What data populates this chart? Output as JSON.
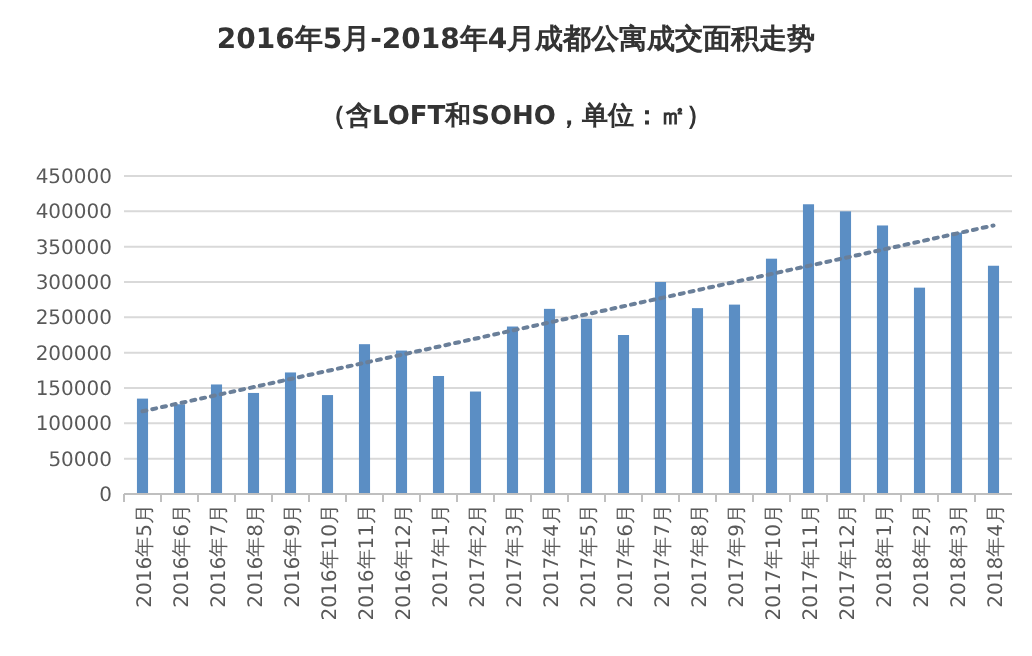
{
  "chart_data": {
    "type": "bar",
    "title": "2016年5月-2018年4月成都公寓成交面积走势",
    "subtitle": "（含LOFT和SOHO，单位：㎡）",
    "categories": [
      "2016年5月",
      "2016年6月",
      "2016年7月",
      "2016年8月",
      "2016年9月",
      "2016年10月",
      "2016年11月",
      "2016年12月",
      "2017年1月",
      "2017年2月",
      "2017年3月",
      "2017年4月",
      "2017年5月",
      "2017年6月",
      "2017年7月",
      "2017年8月",
      "2017年9月",
      "2017年10月",
      "2017年11月",
      "2017年12月",
      "2018年1月",
      "2018年2月",
      "2018年3月",
      "2018年4月"
    ],
    "series": [
      {
        "color": "#5b8ec4",
        "values": [
          135000,
          127000,
          155000,
          143000,
          172000,
          140000,
          212000,
          203000,
          167000,
          145000,
          237000,
          262000,
          248000,
          225000,
          300000,
          263000,
          268000,
          333000,
          410000,
          400000,
          380000,
          292000,
          370000,
          323000
        ]
      },
      {
        "type": "line",
        "color": "#6a7f99",
        "line_style": "dotted",
        "x": [
          "2016年5月",
          "2018年4月"
        ],
        "values": [
          117000,
          380000
        ]
      }
    ],
    "ylim": [
      0,
      450000
    ],
    "yticks": [
      0,
      50000,
      100000,
      150000,
      200000,
      250000,
      300000,
      350000,
      400000,
      450000
    ],
    "grid": "y"
  }
}
